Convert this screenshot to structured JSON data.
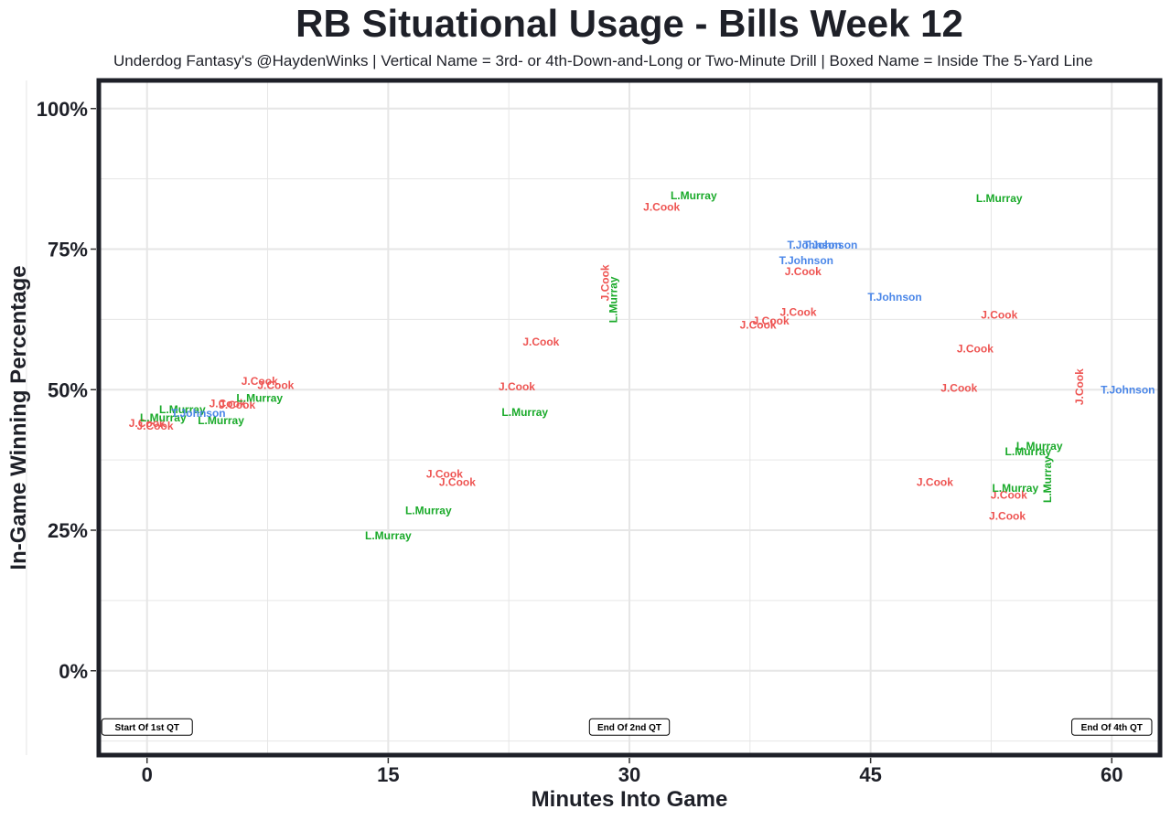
{
  "chart_data": {
    "type": "scatter",
    "title": "RB Situational Usage - Bills Week 12",
    "subtitle": "Underdog Fantasy's @HaydenWinks | Vertical Name = 3rd- or 4th-Down-and-Long or Two-Minute Drill | Boxed Name = Inside The 5-Yard Line",
    "xlabel": "Minutes Into Game",
    "ylabel": "In-Game Winning Percentage",
    "xlim": [
      -3,
      63
    ],
    "ylim": [
      -15,
      105
    ],
    "x_ticks": [
      0,
      15,
      30,
      45,
      60
    ],
    "y_ticks": [
      0,
      25,
      50,
      75,
      100
    ],
    "y_tick_labels": [
      "0%",
      "25%",
      "50%",
      "75%",
      "100%"
    ],
    "grid": true,
    "colors": {
      "J.Cook": "#ee5452",
      "L.Murray": "#1aaa2a",
      "T.Johnson": "#4a86e8",
      "frame": "#1e2028"
    },
    "series": [
      {
        "name": "J.Cook",
        "points": [
          {
            "x": 0.0,
            "y": 44.0
          },
          {
            "x": 0.5,
            "y": 43.5
          },
          {
            "x": 5.0,
            "y": 47.5
          },
          {
            "x": 5.6,
            "y": 47.3
          },
          {
            "x": 7.0,
            "y": 51.5
          },
          {
            "x": 8.0,
            "y": 50.8
          },
          {
            "x": 18.5,
            "y": 35.0
          },
          {
            "x": 19.3,
            "y": 33.5
          },
          {
            "x": 23.0,
            "y": 50.5
          },
          {
            "x": 24.5,
            "y": 58.5
          },
          {
            "x": 28.5,
            "y": 69.0,
            "vertical": true
          },
          {
            "x": 32.0,
            "y": 82.5
          },
          {
            "x": 38.0,
            "y": 61.5
          },
          {
            "x": 38.8,
            "y": 62.2
          },
          {
            "x": 40.5,
            "y": 63.8
          },
          {
            "x": 40.8,
            "y": 71.0
          },
          {
            "x": 49.0,
            "y": 33.5
          },
          {
            "x": 50.5,
            "y": 50.3
          },
          {
            "x": 51.5,
            "y": 57.3
          },
          {
            "x": 53.0,
            "y": 63.3
          },
          {
            "x": 53.5,
            "y": 27.5
          },
          {
            "x": 53.6,
            "y": 31.3
          },
          {
            "x": 58.0,
            "y": 50.5,
            "vertical": true
          }
        ]
      },
      {
        "name": "L.Murray",
        "points": [
          {
            "x": 1.0,
            "y": 45.0
          },
          {
            "x": 2.2,
            "y": 46.5
          },
          {
            "x": 4.6,
            "y": 44.5
          },
          {
            "x": 7.0,
            "y": 48.5
          },
          {
            "x": 15.0,
            "y": 24.0
          },
          {
            "x": 17.5,
            "y": 28.5
          },
          {
            "x": 23.5,
            "y": 46.0
          },
          {
            "x": 29.0,
            "y": 66.0,
            "vertical": true
          },
          {
            "x": 34.0,
            "y": 84.5
          },
          {
            "x": 53.0,
            "y": 84.0
          },
          {
            "x": 54.0,
            "y": 32.5
          },
          {
            "x": 54.8,
            "y": 39.0
          },
          {
            "x": 55.5,
            "y": 40.0
          },
          {
            "x": 56.0,
            "y": 34.0,
            "vertical": true
          }
        ]
      },
      {
        "name": "T.Johnson",
        "points": [
          {
            "x": 3.2,
            "y": 45.8
          },
          {
            "x": 41.5,
            "y": 75.7
          },
          {
            "x": 42.5,
            "y": 75.7
          },
          {
            "x": 41.0,
            "y": 73.0
          },
          {
            "x": 46.5,
            "y": 66.5
          },
          {
            "x": 61.0,
            "y": 50.0
          }
        ]
      }
    ],
    "annotations": [
      {
        "text": "Start Of 1st QT",
        "x": 0,
        "y": -10
      },
      {
        "text": "End Of 2nd QT",
        "x": 30,
        "y": -10
      },
      {
        "text": "End Of 4th QT",
        "x": 60,
        "y": -10
      }
    ]
  }
}
